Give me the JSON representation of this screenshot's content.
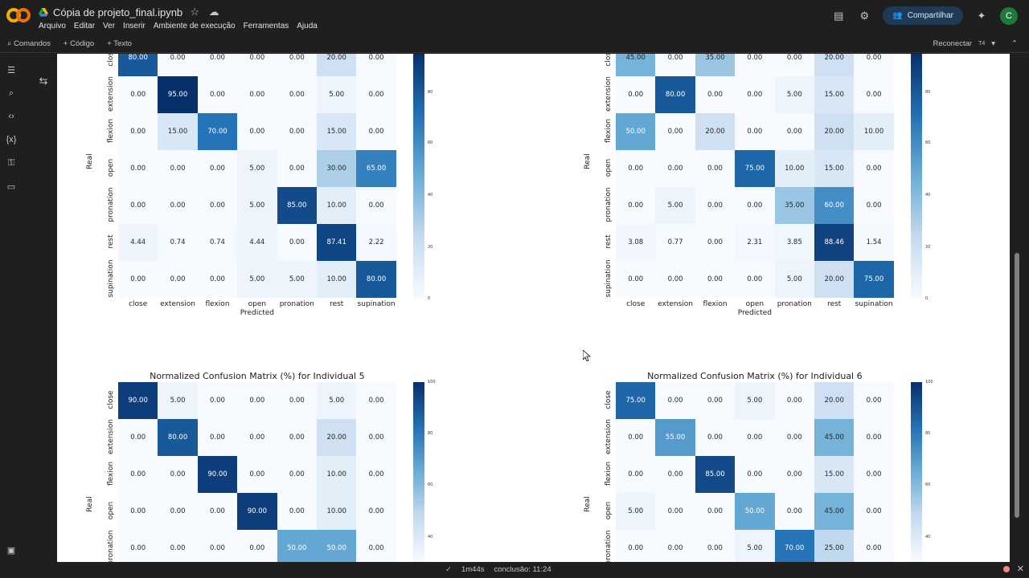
{
  "app": {
    "notebook_title": "Cópia de projeto_final.ipynb",
    "menu": [
      "Arquivo",
      "Editar",
      "Ver",
      "Inserir",
      "Ambiente de execução",
      "Ferramentas",
      "Ajuda"
    ],
    "share_label": "Compartilhar",
    "avatar_letter": "C",
    "toolbar": {
      "commands": "Comandos",
      "add_code": "+ Código",
      "add_text": "+ Texto",
      "reconnect": "Reconectar",
      "runtime": "T4"
    },
    "status": {
      "duration": "1m44s",
      "completion": "conclusão: 11:24"
    }
  },
  "plot_labels": {
    "classes": [
      "close",
      "extension",
      "flexion",
      "open",
      "pronation",
      "rest",
      "supination"
    ],
    "xlabel": "Predicted",
    "ylabel": "Real"
  },
  "chart_data": [
    {
      "type": "heatmap",
      "title": "",
      "rows": [
        [
          "80.00",
          "0.00",
          "0.00",
          "0.00",
          "0.00",
          "20.00",
          "0.00"
        ],
        [
          "0.00",
          "95.00",
          "0.00",
          "0.00",
          "0.00",
          "5.00",
          "0.00"
        ],
        [
          "0.00",
          "15.00",
          "70.00",
          "0.00",
          "0.00",
          "15.00",
          "0.00"
        ],
        [
          "0.00",
          "0.00",
          "0.00",
          "5.00",
          "0.00",
          "30.00",
          "65.00"
        ],
        [
          "0.00",
          "0.00",
          "0.00",
          "5.00",
          "85.00",
          "10.00",
          "0.00"
        ],
        [
          "4.44",
          "0.74",
          "0.74",
          "4.44",
          "0.00",
          "87.41",
          "2.22"
        ],
        [
          "0.00",
          "0.00",
          "0.00",
          "5.00",
          "5.00",
          "10.00",
          "80.00"
        ]
      ],
      "colorbar_ticks": [
        "80",
        "60",
        "40",
        "20",
        "0"
      ]
    },
    {
      "type": "heatmap",
      "title": "",
      "rows": [
        [
          "45.00",
          "0.00",
          "35.00",
          "0.00",
          "0.00",
          "20.00",
          "0.00"
        ],
        [
          "0.00",
          "80.00",
          "0.00",
          "0.00",
          "5.00",
          "15.00",
          "0.00"
        ],
        [
          "50.00",
          "0.00",
          "20.00",
          "0.00",
          "0.00",
          "20.00",
          "10.00"
        ],
        [
          "0.00",
          "0.00",
          "0.00",
          "75.00",
          "10.00",
          "15.00",
          "0.00"
        ],
        [
          "0.00",
          "5.00",
          "0.00",
          "0.00",
          "35.00",
          "60.00",
          "0.00"
        ],
        [
          "3.08",
          "0.77",
          "0.00",
          "2.31",
          "3.85",
          "88.46",
          "1.54"
        ],
        [
          "0.00",
          "0.00",
          "0.00",
          "0.00",
          "5.00",
          "20.00",
          "75.00"
        ]
      ],
      "colorbar_ticks": [
        "80",
        "60",
        "40",
        "20",
        "0"
      ]
    },
    {
      "type": "heatmap",
      "title": "Normalized Confusion Matrix (%) for Individual 5",
      "rows": [
        [
          "90.00",
          "5.00",
          "0.00",
          "0.00",
          "0.00",
          "5.00",
          "0.00"
        ],
        [
          "0.00",
          "80.00",
          "0.00",
          "0.00",
          "0.00",
          "20.00",
          "0.00"
        ],
        [
          "0.00",
          "0.00",
          "90.00",
          "0.00",
          "0.00",
          "10.00",
          "0.00"
        ],
        [
          "0.00",
          "0.00",
          "0.00",
          "90.00",
          "0.00",
          "10.00",
          "0.00"
        ],
        [
          "0.00",
          "0.00",
          "0.00",
          "0.00",
          "50.00",
          "50.00",
          "0.00"
        ]
      ],
      "colorbar_ticks": [
        "100",
        "80",
        "60",
        "40"
      ]
    },
    {
      "type": "heatmap",
      "title": "Normalized Confusion Matrix (%) for Individual 6",
      "rows": [
        [
          "75.00",
          "0.00",
          "0.00",
          "5.00",
          "0.00",
          "20.00",
          "0.00"
        ],
        [
          "0.00",
          "55.00",
          "0.00",
          "0.00",
          "0.00",
          "45.00",
          "0.00"
        ],
        [
          "0.00",
          "0.00",
          "85.00",
          "0.00",
          "0.00",
          "15.00",
          "0.00"
        ],
        [
          "5.00",
          "0.00",
          "0.00",
          "50.00",
          "0.00",
          "45.00",
          "0.00"
        ],
        [
          "0.00",
          "0.00",
          "0.00",
          "5.00",
          "70.00",
          "25.00",
          "0.00"
        ]
      ],
      "colorbar_ticks": [
        "100",
        "80",
        "60",
        "40"
      ]
    }
  ]
}
